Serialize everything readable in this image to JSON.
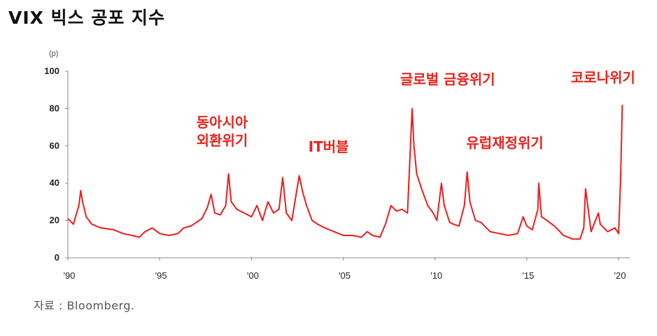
{
  "title": "VIX 빅스 공포 지수",
  "source": "자료 : Bloomberg.",
  "chart_data": {
    "type": "line",
    "unit": "(p)",
    "ylim": [
      0,
      100
    ],
    "yticks": [
      0,
      20,
      40,
      60,
      80,
      100
    ],
    "xlim": [
      1990,
      2020.3
    ],
    "xticks": [
      {
        "value": 1990,
        "label": "'90"
      },
      {
        "value": 1995,
        "label": "'95"
      },
      {
        "value": 2000,
        "label": "'00"
      },
      {
        "value": 2005,
        "label": "'05"
      },
      {
        "value": 2010,
        "label": "'10"
      },
      {
        "value": 2015,
        "label": "'15"
      },
      {
        "value": 2020,
        "label": "'20"
      }
    ],
    "grid": false,
    "line_color": "#ee1c1c",
    "annotation_color": "#e8231b",
    "annotations": [
      {
        "lines": [
          "동아시아",
          "외환위기"
        ],
        "x": 1997.0,
        "y": 70
      },
      {
        "lines": [
          "IT버블"
        ],
        "x": 2003.1,
        "y": 57
      },
      {
        "lines": [
          "글로벌 금융위기"
        ],
        "x": 2008.1,
        "y": 93
      },
      {
        "lines": [
          "유럽재정위기"
        ],
        "x": 2011.7,
        "y": 59
      },
      {
        "lines": [
          "코로나위기"
        ],
        "x": 2017.4,
        "y": 94
      }
    ],
    "series": [
      {
        "x": [
          1990.0,
          1990.3,
          1990.6,
          1990.7,
          1990.8,
          1991.0,
          1991.3,
          1991.8,
          1992.5,
          1993.0,
          1993.5,
          1993.9,
          1994.2,
          1994.6,
          1995.0,
          1995.5,
          1996.0,
          1996.3,
          1996.7,
          1997.0,
          1997.3,
          1997.6,
          1997.8,
          1998.0,
          1998.3,
          1998.6,
          1998.75,
          1998.9,
          1999.2,
          1999.6,
          2000.0,
          2000.3,
          2000.6,
          2000.9,
          2001.2,
          2001.5,
          2001.7,
          2001.9,
          2002.2,
          2002.5,
          2002.6,
          2002.8,
          2003.0,
          2003.3,
          2003.6,
          2004.0,
          2004.5,
          2005.0,
          2005.5,
          2006.0,
          2006.3,
          2006.6,
          2007.0,
          2007.3,
          2007.6,
          2007.9,
          2008.2,
          2008.5,
          2008.75,
          2008.85,
          2009.0,
          2009.3,
          2009.6,
          2009.9,
          2010.1,
          2010.35,
          2010.5,
          2010.8,
          2011.0,
          2011.3,
          2011.6,
          2011.75,
          2011.9,
          2012.2,
          2012.5,
          2012.8,
          2013.0,
          2013.5,
          2014.0,
          2014.5,
          2014.8,
          2015.0,
          2015.3,
          2015.6,
          2015.65,
          2015.8,
          2016.1,
          2016.5,
          2016.8,
          2017.0,
          2017.5,
          2017.9,
          2018.1,
          2018.2,
          2018.5,
          2018.9,
          2019.0,
          2019.4,
          2019.8,
          2020.0,
          2020.1,
          2020.2
        ],
        "y": [
          21,
          18,
          28,
          36,
          30,
          22,
          18,
          16,
          15,
          13,
          12,
          11,
          14,
          16,
          13,
          12,
          13,
          16,
          17,
          19,
          21,
          27,
          34,
          24,
          23,
          28,
          45,
          30,
          26,
          24,
          22,
          28,
          20,
          30,
          24,
          26,
          43,
          24,
          20,
          38,
          44,
          35,
          28,
          20,
          18,
          16,
          14,
          12,
          12,
          11,
          14,
          12,
          11,
          18,
          28,
          25,
          26,
          24,
          80,
          60,
          45,
          36,
          28,
          24,
          20,
          40,
          28,
          19,
          18,
          17,
          28,
          46,
          30,
          20,
          19,
          16,
          14,
          13,
          12,
          13,
          22,
          17,
          15,
          26,
          40,
          22,
          20,
          17,
          14,
          12,
          10,
          10,
          16,
          37,
          14,
          24,
          18,
          14,
          16,
          13,
          40,
          82
        ]
      }
    ]
  }
}
